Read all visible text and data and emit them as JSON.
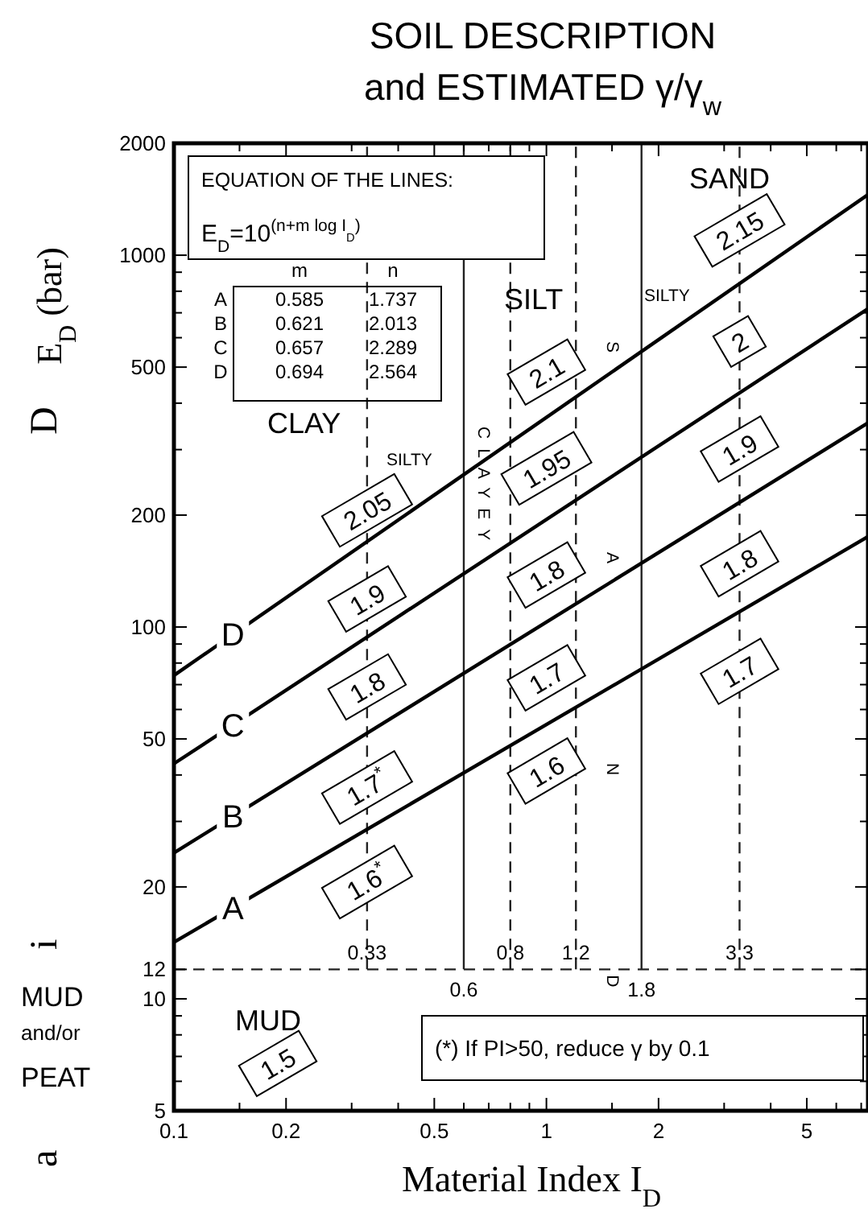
{
  "chart_data": {
    "type": "line",
    "title": "SOIL DESCRIPTION",
    "subtitle": "and ESTIMATED γ/γ$_{w}$",
    "xlabel": "Material Index  I$_{D}$",
    "ylabel": "E$_{D}$ (bar)",
    "log": "xy",
    "line_style": "solid",
    "x": [
      0.1,
      7.3
    ],
    "xlim": [
      0.1,
      7.3
    ],
    "ylim": [
      5,
      2000
    ],
    "xticks": [
      0.1,
      {
        "value": 0.15,
        "label": null
      },
      0.2,
      {
        "value": 0.3,
        "label": null
      },
      {
        "value": 0.4,
        "label": null
      },
      0.5,
      {
        "value": 0.6,
        "label": null
      },
      {
        "value": 0.7,
        "label": null
      },
      {
        "value": 0.8,
        "label": null
      },
      {
        "value": 0.9,
        "label": null
      },
      1,
      {
        "value": 1.5,
        "label": null
      },
      2,
      {
        "value": 3,
        "label": null
      },
      {
        "value": 4,
        "label": null
      },
      5,
      {
        "value": 6,
        "label": null
      },
      {
        "value": 7,
        "label": null
      }
    ],
    "yticks": [
      5,
      {
        "value": 6,
        "label": null
      },
      {
        "value": 7,
        "label": null
      },
      {
        "value": 8,
        "label": null
      },
      {
        "value": 9,
        "label": null
      },
      10,
      12,
      20,
      {
        "value": 30,
        "label": null
      },
      {
        "value": 40,
        "label": null
      },
      50,
      {
        "value": 60,
        "label": null
      },
      {
        "value": 70,
        "label": null
      },
      {
        "value": 80,
        "label": null
      },
      {
        "value": 90,
        "label": null
      },
      100,
      200,
      {
        "value": 300,
        "label": null
      },
      {
        "value": 400,
        "label": null
      },
      500,
      {
        "value": 600,
        "label": null
      },
      {
        "value": 700,
        "label": null
      },
      {
        "value": 800,
        "label": null
      },
      {
        "value": 900,
        "label": null
      },
      1000,
      2000
    ],
    "series": [
      {
        "name": "A",
        "color": "#000000",
        "values": [
          14.2,
          175
        ]
      },
      {
        "name": "B",
        "color": "#000000",
        "values": [
          24.7,
          354
        ]
      },
      {
        "name": "C",
        "color": "#000000",
        "values": [
          42.9,
          718
        ]
      },
      {
        "name": "D",
        "color": "#000000",
        "values": [
          74.1,
          1455
        ]
      }
    ],
    "ref_lines": [
      {
        "axis": "y",
        "value": 12,
        "line_style": "dashed"
      },
      {
        "axis": "x",
        "value": 0.33,
        "label": "0.33",
        "line_style": "dashed"
      },
      {
        "axis": "x",
        "value": 0.6,
        "label": "0.6",
        "line_style": "solid"
      },
      {
        "axis": "x",
        "value": 0.8,
        "label": "0.8",
        "line_style": "dashed"
      },
      {
        "axis": "x",
        "value": 1.2,
        "label": "1.2",
        "line_style": "dashed"
      },
      {
        "axis": "x",
        "value": 1.8,
        "label": "1.8",
        "line_style": "solid"
      },
      {
        "axis": "x",
        "value": 3.3,
        "label": "3.3",
        "line_style": "dashed"
      }
    ],
    "annotations": [
      "EQUATION OF THE LINES:",
      "E$_{D}$=10$^{(n+m log I}$$_{D}$$^{)}$",
      "m",
      "n",
      "A",
      "0.585",
      "1.737",
      "B",
      "0.621",
      "2.013",
      "C",
      "0.657",
      "2.289",
      "D",
      "0.694",
      "2.564",
      "CLAY",
      "SILTY",
      "SILT",
      "SILTY",
      "SAND",
      "CLAYEY",
      "SAND",
      "MUD",
      "MUD",
      "and/or",
      "PEAT",
      "(*) If PI>50, reduce γ by 0.1",
      "D",
      "i",
      "a",
      "2.05",
      "1.9",
      "1.8",
      "1.7$^{*}$",
      "1.6$^{*}$",
      "2.1",
      "1.95",
      "1.8",
      "1.7",
      "1.6",
      "2.15",
      "2",
      "1.9",
      "1.8",
      "1.7",
      "1.5"
    ]
  }
}
